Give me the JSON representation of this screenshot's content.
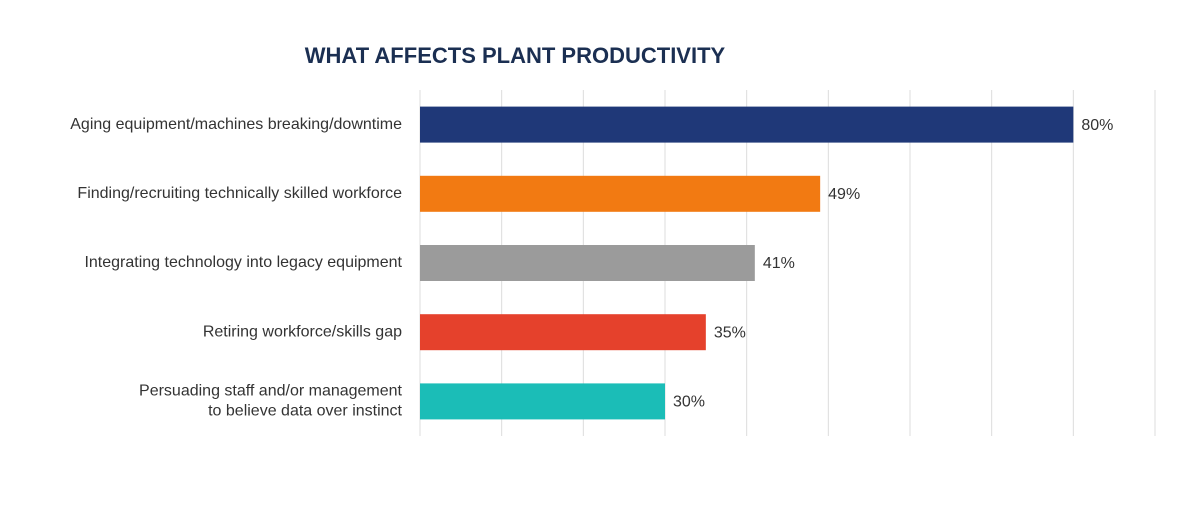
{
  "chart_data": {
    "type": "bar",
    "orientation": "horizontal",
    "title": "WHAT AFFECTS PLANT PRODUCTIVITY",
    "categories": [
      "Aging equipment/machines breaking/downtime",
      "Finding/recruiting technically skilled workforce",
      "Integrating technology into legacy equipment",
      "Retiring workforce/skills gap",
      "Persuading staff and/or management\nto believe data over instinct"
    ],
    "values": [
      80,
      49,
      41,
      35,
      30
    ],
    "value_labels": [
      "80%",
      "49%",
      "41%",
      "35%",
      "30%"
    ],
    "colors": [
      "#1f3878",
      "#f27a12",
      "#9b9b9b",
      "#e5412c",
      "#1bbdb7"
    ],
    "xlim": [
      0,
      90
    ],
    "xticks": [
      0,
      10,
      20,
      30,
      40,
      50,
      60,
      70,
      80,
      90
    ],
    "grid": true
  }
}
